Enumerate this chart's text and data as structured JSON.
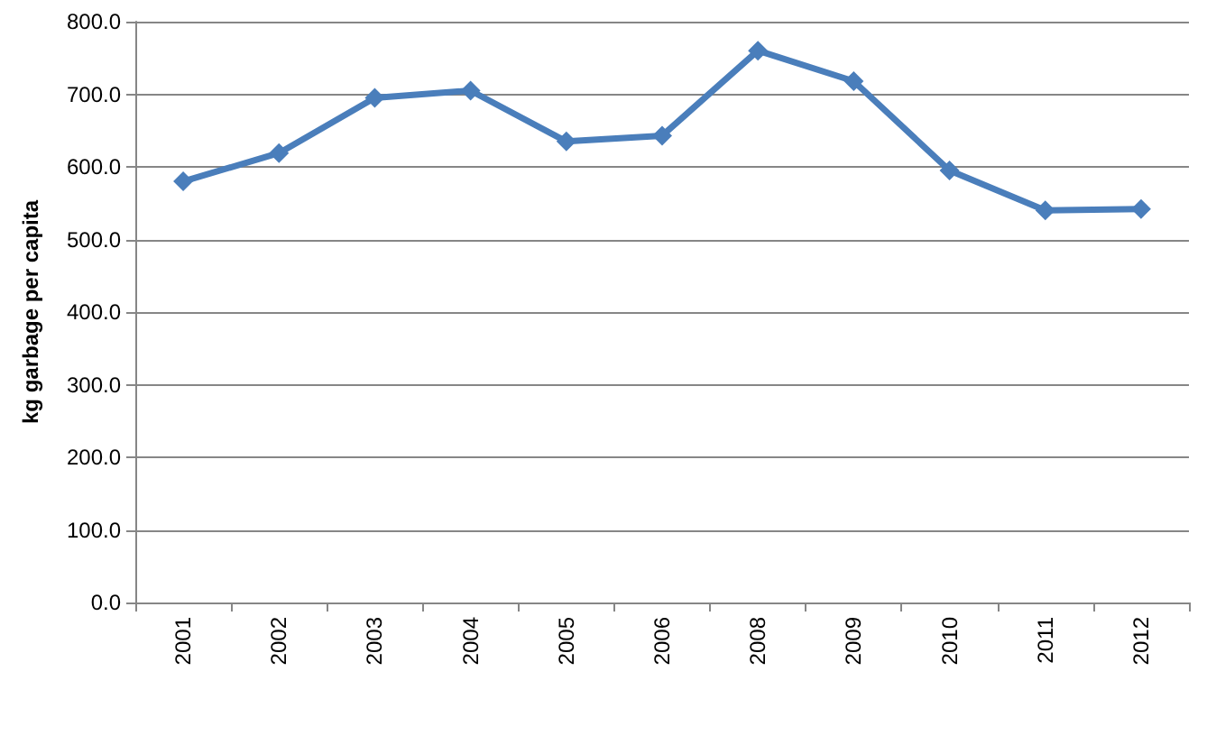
{
  "chart_data": {
    "type": "line",
    "ylabel": "kg garbage per capita",
    "categories": [
      "2001",
      "2002",
      "2003",
      "2004",
      "2005",
      "2006",
      "2008",
      "2009",
      "2010",
      "2011",
      "2012"
    ],
    "series": [
      {
        "color": "#4a7ebb",
        "values": [
          580,
          619,
          695,
          705,
          635,
          643,
          760,
          718,
          595,
          540,
          542
        ]
      }
    ],
    "ylim": [
      0,
      800
    ],
    "yticks": [
      {
        "value": 0,
        "label": "0.0"
      },
      {
        "value": 100,
        "label": "100.0"
      },
      {
        "value": 200,
        "label": "200.0"
      },
      {
        "value": 300,
        "label": "300.0"
      },
      {
        "value": 400,
        "label": "400.0"
      },
      {
        "value": 500,
        "label": "500.0"
      },
      {
        "value": 600,
        "label": "600.0"
      },
      {
        "value": 700,
        "label": "700.0"
      },
      {
        "value": 800,
        "label": "800.0"
      }
    ],
    "grid": "y",
    "marker": "diamond",
    "line_style": "solid"
  }
}
